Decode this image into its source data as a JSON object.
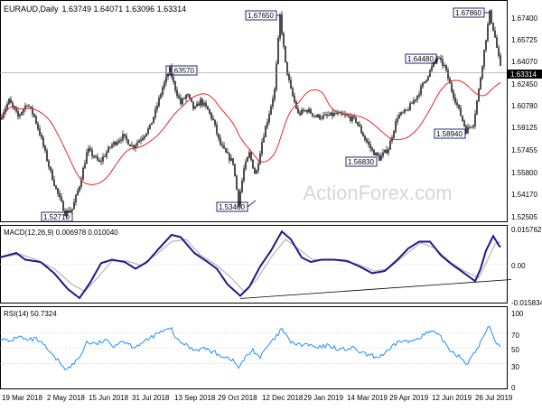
{
  "header": {
    "symbol": "EURAUD,Daily",
    "ohlc": "1.63749 1.64071 1.63096 1.63314"
  },
  "watermark": "ActionForex.com",
  "colors": {
    "candle": "#000000",
    "ma": "#e8262a",
    "callout_border": "#1c2a7a",
    "macd": "#1c1a8c",
    "signal": "#b5b5b5",
    "rsi": "#1e90ff",
    "last_price_bg": "#000000",
    "watermark": "#d6d6d6"
  },
  "chart_data": [
    {
      "type": "candlestick",
      "title": "EURAUD,Daily",
      "ylim": [
        1.5225,
        1.6855
      ],
      "y_ticks": [
        "1.67400",
        "1.65725",
        "1.64070",
        "1.62450",
        "1.60780",
        "1.59125",
        "1.57455",
        "1.55800",
        "1.54170",
        "1.52505"
      ],
      "last_price": "1.63314",
      "ma_line": "red moving average",
      "callouts": [
        "1.52710",
        "1.63570",
        "1.53460",
        "1.67650",
        "1.56830",
        "1.64480",
        "1.58940",
        "1.67860"
      ],
      "x_tick_labels": [
        "19 Mar 2018",
        "2 May 2018",
        "15 Jun 2018",
        "31 Jul 2018",
        "13 Sep 2018",
        "29 Oct 2018",
        "12 Dec 2018",
        "29 Jan 2019",
        "14 Mar 2019",
        "29 Apr 2019",
        "12 Jun 2019",
        "26 Jul 2019"
      ],
      "anchors": [
        [
          0,
          1.598
        ],
        [
          3,
          1.603
        ],
        [
          10,
          1.612
        ],
        [
          20,
          1.6
        ],
        [
          30,
          1.61
        ],
        [
          38,
          1.6
        ],
        [
          45,
          1.585
        ],
        [
          55,
          1.56
        ],
        [
          62,
          1.545
        ],
        [
          72,
          1.527
        ],
        [
          80,
          1.53
        ],
        [
          88,
          1.548
        ],
        [
          97,
          1.575
        ],
        [
          110,
          1.565
        ],
        [
          123,
          1.578
        ],
        [
          136,
          1.585
        ],
        [
          147,
          1.577
        ],
        [
          158,
          1.585
        ],
        [
          166,
          1.592
        ],
        [
          172,
          1.604
        ],
        [
          180,
          1.622
        ],
        [
          188,
          1.6357
        ],
        [
          193,
          1.623
        ],
        [
          200,
          1.61
        ],
        [
          207,
          1.617
        ],
        [
          215,
          1.605
        ],
        [
          222,
          1.612
        ],
        [
          230,
          1.605
        ],
        [
          236,
          1.597
        ],
        [
          243,
          1.58
        ],
        [
          250,
          1.572
        ],
        [
          258,
          1.565
        ],
        [
          264,
          1.5346
        ],
        [
          270,
          1.56
        ],
        [
          276,
          1.572
        ],
        [
          283,
          1.555
        ],
        [
          290,
          1.581
        ],
        [
          297,
          1.6
        ],
        [
          304,
          1.62
        ],
        [
          310,
          1.6765
        ],
        [
          316,
          1.64
        ],
        [
          322,
          1.62
        ],
        [
          330,
          1.602
        ],
        [
          340,
          1.605
        ],
        [
          350,
          1.6
        ],
        [
          360,
          1.6
        ],
        [
          372,
          1.602
        ],
        [
          384,
          1.6
        ],
        [
          394,
          1.597
        ],
        [
          404,
          1.583
        ],
        [
          412,
          1.574
        ],
        [
          420,
          1.5683
        ],
        [
          430,
          1.576
        ],
        [
          440,
          1.6
        ],
        [
          450,
          1.604
        ],
        [
          462,
          1.616
        ],
        [
          474,
          1.632
        ],
        [
          484,
          1.6448
        ],
        [
          492,
          1.638
        ],
        [
          500,
          1.62
        ],
        [
          508,
          1.605
        ],
        [
          516,
          1.5894
        ],
        [
          524,
          1.595
        ],
        [
          530,
          1.62
        ],
        [
          536,
          1.65
        ],
        [
          542,
          1.6786
        ],
        [
          548,
          1.66
        ],
        [
          555,
          1.6331
        ]
      ]
    },
    {
      "type": "line",
      "title": "MACD(12,26,9) 0.006978 0.010040",
      "y_ticks": [
        "0.015762",
        "0.00",
        "-0.015834"
      ],
      "ylim": [
        -0.0158,
        0.0158
      ],
      "series": [
        {
          "name": "MACD",
          "anchors": [
            [
              0,
              0.003
            ],
            [
              18,
              0.005
            ],
            [
              28,
              0.002
            ],
            [
              45,
              0.001
            ],
            [
              60,
              -0.004
            ],
            [
              75,
              -0.011
            ],
            [
              88,
              -0.015
            ],
            [
              100,
              -0.008
            ],
            [
              112,
              0.0005
            ],
            [
              124,
              0.002
            ],
            [
              138,
              0.001
            ],
            [
              150,
              -0.002
            ],
            [
              163,
              0.001
            ],
            [
              176,
              0.007
            ],
            [
              190,
              0.013
            ],
            [
              200,
              0.012
            ],
            [
              215,
              0.005
            ],
            [
              228,
              0.0015
            ],
            [
              240,
              -0.002
            ],
            [
              252,
              -0.009
            ],
            [
              266,
              -0.014
            ],
            [
              276,
              -0.01
            ],
            [
              288,
              -0.001
            ],
            [
              300,
              0.006
            ],
            [
              312,
              0.0145
            ],
            [
              322,
              0.011
            ],
            [
              334,
              0.003
            ],
            [
              344,
              0.001
            ],
            [
              356,
              0.002
            ],
            [
              370,
              0.002
            ],
            [
              384,
              0.0015
            ],
            [
              398,
              -0.001
            ],
            [
              412,
              -0.004
            ],
            [
              426,
              -0.003
            ],
            [
              440,
              0.002
            ],
            [
              452,
              0.007
            ],
            [
              464,
              0.01
            ],
            [
              476,
              0.01
            ],
            [
              488,
              0.004
            ],
            [
              500,
              0.0
            ],
            [
              514,
              -0.004
            ],
            [
              526,
              -0.0075
            ],
            [
              532,
              -0.002
            ],
            [
              538,
              0.006
            ],
            [
              546,
              0.0125
            ],
            [
              552,
              0.0085
            ],
            [
              555,
              0.007
            ]
          ]
        },
        {
          "name": "Signal",
          "anchors": [
            [
              0,
              0.003
            ],
            [
              22,
              0.0045
            ],
            [
              40,
              0.002
            ],
            [
              60,
              -0.002
            ],
            [
              80,
              -0.009
            ],
            [
              94,
              -0.012
            ],
            [
              108,
              -0.006
            ],
            [
              124,
              0.0015
            ],
            [
              140,
              0.0015
            ],
            [
              156,
              -0.0005
            ],
            [
              172,
              0.004
            ],
            [
              190,
              0.01
            ],
            [
              206,
              0.011
            ],
            [
              222,
              0.004
            ],
            [
              240,
              -0.0005
            ],
            [
              256,
              -0.006
            ],
            [
              270,
              -0.012
            ],
            [
              284,
              -0.007
            ],
            [
              300,
              0.003
            ],
            [
              316,
              0.011
            ],
            [
              330,
              0.007
            ],
            [
              346,
              0.002
            ],
            [
              370,
              0.002
            ],
            [
              396,
              0.0
            ],
            [
              414,
              -0.003
            ],
            [
              430,
              -0.002
            ],
            [
              448,
              0.004
            ],
            [
              466,
              0.0095
            ],
            [
              482,
              0.007
            ],
            [
              498,
              0.001
            ],
            [
              514,
              -0.003
            ],
            [
              530,
              -0.006
            ],
            [
              540,
              0.002
            ],
            [
              548,
              0.009
            ],
            [
              555,
              0.01
            ]
          ]
        },
        {
          "name": "trendline",
          "anchors": [
            [
              266,
              -0.0152
            ],
            [
              566,
              -0.0068
            ]
          ]
        }
      ]
    },
    {
      "type": "line",
      "title": "RSI(14) 50.7324",
      "y_ticks": [
        "100",
        "70",
        "50",
        "30",
        "0"
      ],
      "ylim": [
        0,
        100
      ],
      "levels": [
        70,
        50,
        30
      ],
      "series": [
        {
          "name": "RSI",
          "anchors": [
            [
              0,
              63
            ],
            [
              10,
              58
            ],
            [
              20,
              66
            ],
            [
              30,
              60
            ],
            [
              40,
              62
            ],
            [
              50,
              52
            ],
            [
              58,
              40
            ],
            [
              66,
              32
            ],
            [
              74,
              22
            ],
            [
              80,
              28
            ],
            [
              88,
              38
            ],
            [
              96,
              58
            ],
            [
              106,
              55
            ],
            [
              116,
              60
            ],
            [
              126,
              54
            ],
            [
              136,
              60
            ],
            [
              148,
              52
            ],
            [
              160,
              58
            ],
            [
              170,
              66
            ],
            [
              180,
              72
            ],
            [
              190,
              75
            ],
            [
              196,
              60
            ],
            [
              205,
              55
            ],
            [
              215,
              48
            ],
            [
              226,
              50
            ],
            [
              236,
              45
            ],
            [
              246,
              40
            ],
            [
              256,
              36
            ],
            [
              264,
              25
            ],
            [
              272,
              38
            ],
            [
              280,
              48
            ],
            [
              288,
              38
            ],
            [
              296,
              52
            ],
            [
              304,
              62
            ],
            [
              312,
              75
            ],
            [
              320,
              60
            ],
            [
              330,
              54
            ],
            [
              340,
              55
            ],
            [
              352,
              50
            ],
            [
              364,
              54
            ],
            [
              376,
              48
            ],
            [
              390,
              50
            ],
            [
              404,
              42
            ],
            [
              418,
              38
            ],
            [
              430,
              46
            ],
            [
              442,
              60
            ],
            [
              454,
              58
            ],
            [
              466,
              66
            ],
            [
              478,
              72
            ],
            [
              488,
              64
            ],
            [
              498,
              48
            ],
            [
              508,
              40
            ],
            [
              518,
              30
            ],
            [
              526,
              45
            ],
            [
              534,
              62
            ],
            [
              542,
              80
            ],
            [
              548,
              60
            ],
            [
              555,
              50.7
            ]
          ]
        }
      ]
    }
  ]
}
